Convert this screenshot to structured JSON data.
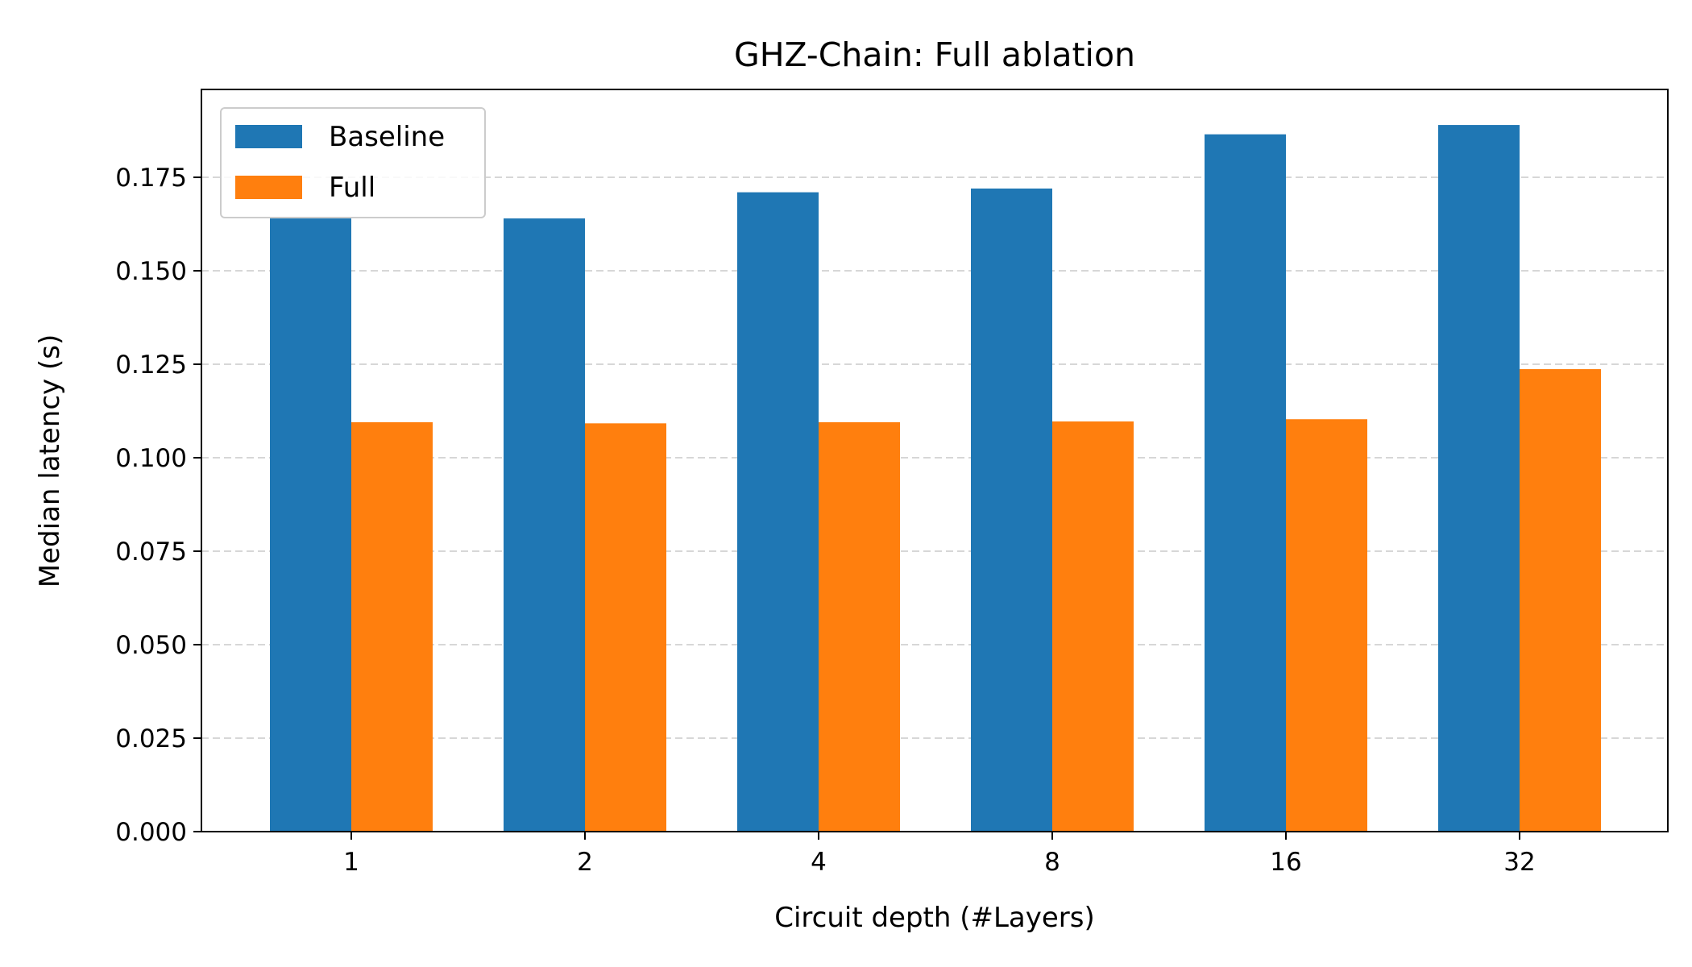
{
  "chart_data": {
    "type": "bar",
    "title": "GHZ-Chain: Full ablation",
    "xlabel": "Circuit depth (#Layers)",
    "ylabel": "Median latency (s)",
    "categories": [
      "1",
      "2",
      "4",
      "8",
      "16",
      "32"
    ],
    "series": [
      {
        "name": "Baseline",
        "color": "#1f77b4",
        "values": [
          0.164,
          0.164,
          0.171,
          0.172,
          0.1865,
          0.189
        ]
      },
      {
        "name": "Full",
        "color": "#ff7f0e",
        "values": [
          0.1095,
          0.1092,
          0.1095,
          0.1097,
          0.1103,
          0.1237
        ]
      }
    ],
    "ylim": [
      0,
      0.1985
    ],
    "yticks": [
      "0.000",
      "0.025",
      "0.050",
      "0.075",
      "0.100",
      "0.125",
      "0.150",
      "0.175"
    ],
    "ytick_values": [
      0,
      0.025,
      0.05,
      0.075,
      0.1,
      0.125,
      0.15,
      0.175
    ],
    "grid": "y-dashed",
    "legend_position": "upper-left"
  }
}
